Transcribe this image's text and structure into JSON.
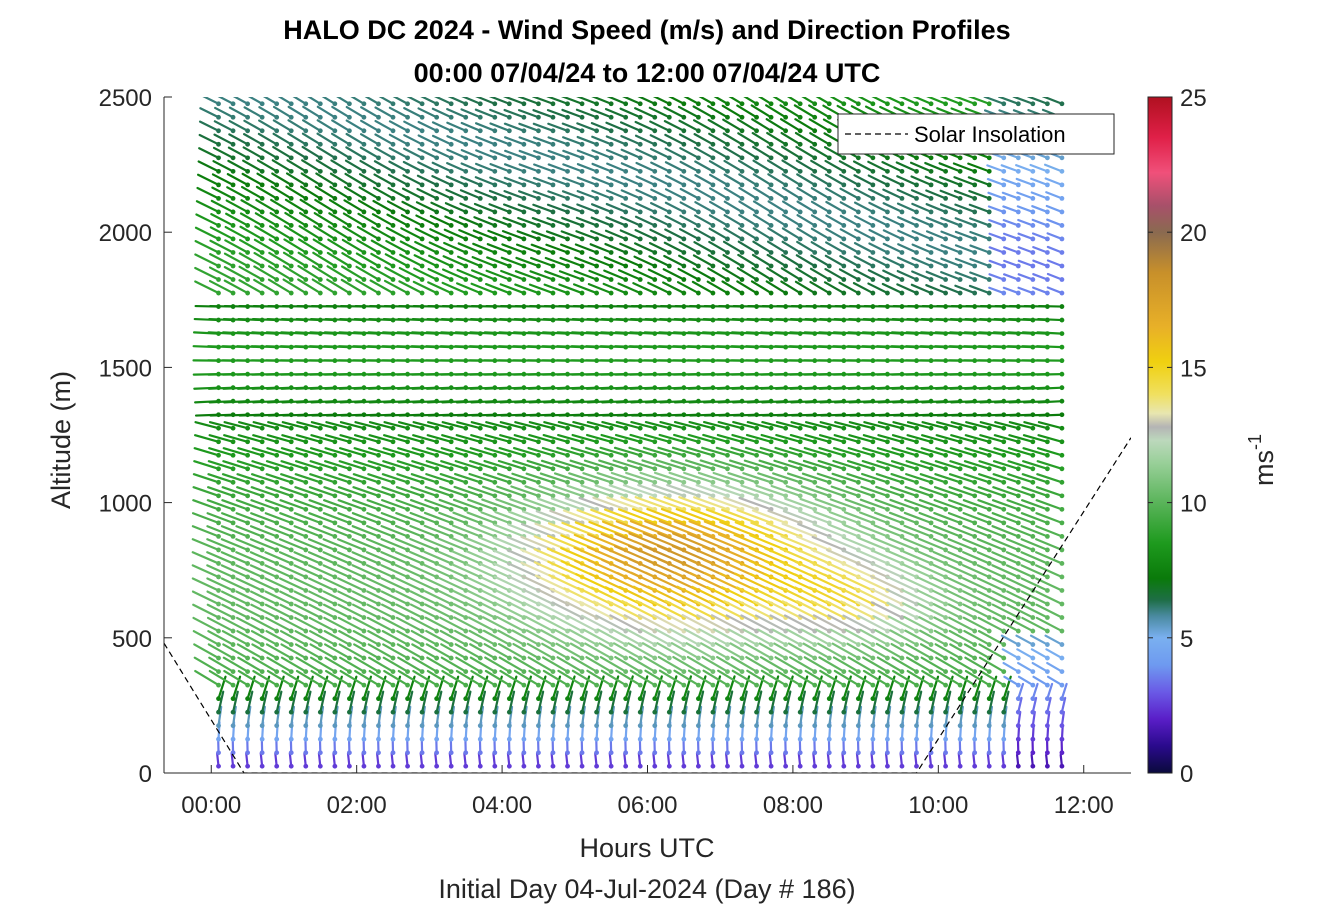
{
  "chart_data": {
    "type": "quiver",
    "title": "HALO DC 2024 - Wind Speed (m/s) and Direction Profiles",
    "subtitle": "00:00 07/04/24 to 12:00 07/04/24  UTC",
    "xlabel": "Hours UTC",
    "xlabel2": "Initial Day 04-Jul-2024 (Day # 186)",
    "ylabel": "Altitude (m)",
    "xlim": [
      -0.65,
      12.65
    ],
    "ylim": [
      0,
      2500
    ],
    "x_ticks": [
      0,
      2,
      4,
      6,
      8,
      10,
      12
    ],
    "x_tick_labels": [
      "00:00",
      "02:00",
      "04:00",
      "06:00",
      "08:00",
      "10:00",
      "12:00"
    ],
    "y_ticks": [
      0,
      500,
      1000,
      1500,
      2000,
      2500
    ],
    "y_tick_labels": [
      "0",
      "500",
      "1000",
      "1500",
      "2000",
      "2500"
    ],
    "colorbar": {
      "label_base": "ms",
      "label_exp": "-1",
      "range": [
        0,
        25
      ],
      "ticks": [
        0,
        5,
        10,
        15,
        20,
        25
      ],
      "tick_labels": [
        "0",
        "5",
        "10",
        "15",
        "20",
        "25"
      ],
      "colormap": [
        [
          0,
          "#0a0a3c"
        ],
        [
          1,
          "#2a0a8c"
        ],
        [
          2,
          "#5a1ec8"
        ],
        [
          3,
          "#6a5ae6"
        ],
        [
          4,
          "#6e9af0"
        ],
        [
          5,
          "#7ab0f0"
        ],
        [
          5.8,
          "#4a8aa0"
        ],
        [
          6.4,
          "#1e6e46"
        ],
        [
          7.2,
          "#0a7a0a"
        ],
        [
          8.5,
          "#1e9a1e"
        ],
        [
          10,
          "#5ab45a"
        ],
        [
          11.5,
          "#9ad09a"
        ],
        [
          12.3,
          "#bcd8bc"
        ],
        [
          12.8,
          "#b4b4b4"
        ],
        [
          13.3,
          "#e8e6b0"
        ],
        [
          14,
          "#f0e060"
        ],
        [
          15.2,
          "#f0d010"
        ],
        [
          16.5,
          "#e8b028"
        ],
        [
          18.5,
          "#c8902a"
        ],
        [
          20,
          "#8a6a50"
        ],
        [
          21,
          "#a8506a"
        ],
        [
          22.2,
          "#f0507a"
        ],
        [
          23.5,
          "#e02048"
        ],
        [
          25,
          "#b01020"
        ]
      ]
    },
    "legend": {
      "entries": [
        "Solar Insolation"
      ],
      "location": "top-right",
      "style": "black dashed"
    },
    "solar_insolation": {
      "x": [
        -0.65,
        0.45,
        1.0,
        4.0,
        8.0,
        9.7,
        12.65
      ],
      "y": [
        480,
        0,
        0,
        0,
        0,
        0,
        1240
      ]
    },
    "wind_field": {
      "time_step_hours": 0.2,
      "time_range": [
        0.1,
        11.8
      ],
      "altitude_step_m": 25,
      "altitude_range": [
        25,
        2500
      ],
      "speed_units": "m/s",
      "regimes": [
        {
          "alt_range": [
            0,
            300
          ],
          "speed": [
            2,
            6
          ],
          "direction": "northerly"
        },
        {
          "alt_range": [
            300,
            1300
          ],
          "speed": [
            7,
            17
          ],
          "direction": "northwesterly",
          "max_speed_hours": [
            5,
            9
          ]
        },
        {
          "alt_range": [
            1300,
            1750
          ],
          "speed": [
            5,
            10
          ],
          "direction": "westerly"
        },
        {
          "alt_range": [
            1750,
            2500
          ],
          "speed": [
            6,
            11
          ],
          "direction": "northwesterly"
        }
      ]
    }
  }
}
